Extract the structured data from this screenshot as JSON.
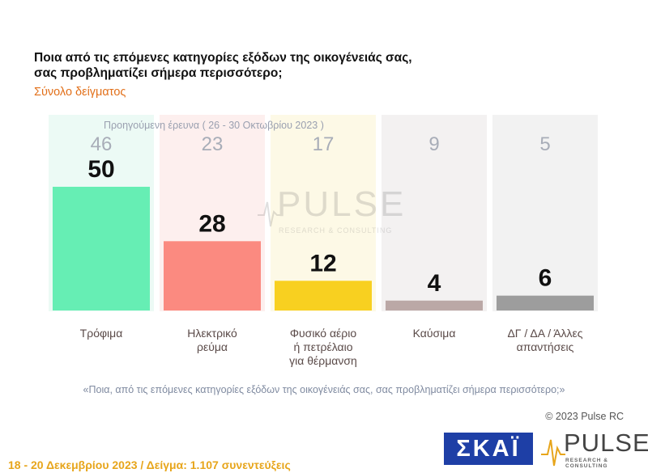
{
  "header": {
    "title_line1": "Ποια από τις επόμενες κατηγορίες εξόδων της οικογένειάς σας,",
    "title_line2": "σας προβληματίζει σήμερα περισσότερο;",
    "subtitle": "Σύνολο δείγματος"
  },
  "chart_data": {
    "type": "bar",
    "previous_survey_label": "Προηγούμενη έρευνα ( 26 - 30 Οκτωβρίου 2023 )",
    "categories": [
      [
        "Τρόφιμα"
      ],
      [
        "Ηλεκτρικό",
        "ρεύμα"
      ],
      [
        "Φυσικό αέριο",
        "ή πετρέλαιο",
        "για θέρμανση"
      ],
      [
        "Καύσιμα"
      ],
      [
        "ΔΓ / ΔΑ / Άλλες",
        "απαντήσεις"
      ]
    ],
    "series": [
      {
        "values": [
          50,
          28,
          12,
          4,
          6
        ]
      },
      {
        "values": [
          46,
          23,
          17,
          9,
          5
        ]
      }
    ],
    "colors": [
      "#66eeb4",
      "#fb8a80",
      "#f8d020",
      "#bba8a6",
      "#9d9d9d"
    ],
    "background_colors": [
      "#ecfaf5",
      "#fdefee",
      "#fdf9e6",
      "#f3f1f1",
      "#f2f2f2"
    ],
    "ylim": [
      0,
      60
    ]
  },
  "footer": {
    "question_note": "«Ποια, από τις επόμενες κατηγορίες εξόδων της οικογένειάς σας, σας προβληματίζει σήμερα περισσότερο;»",
    "copyright": "© 2023 Pulse RC",
    "survey_info": "18 - 20 Δεκεμβρίου 2023 / Δείγμα: 1.107 συνεντεύξεις"
  },
  "logos": {
    "skai": "ΣΚΑΪ",
    "pulse": "PULSE",
    "pulse_sub": "RESEARCH & CONSULTING"
  }
}
